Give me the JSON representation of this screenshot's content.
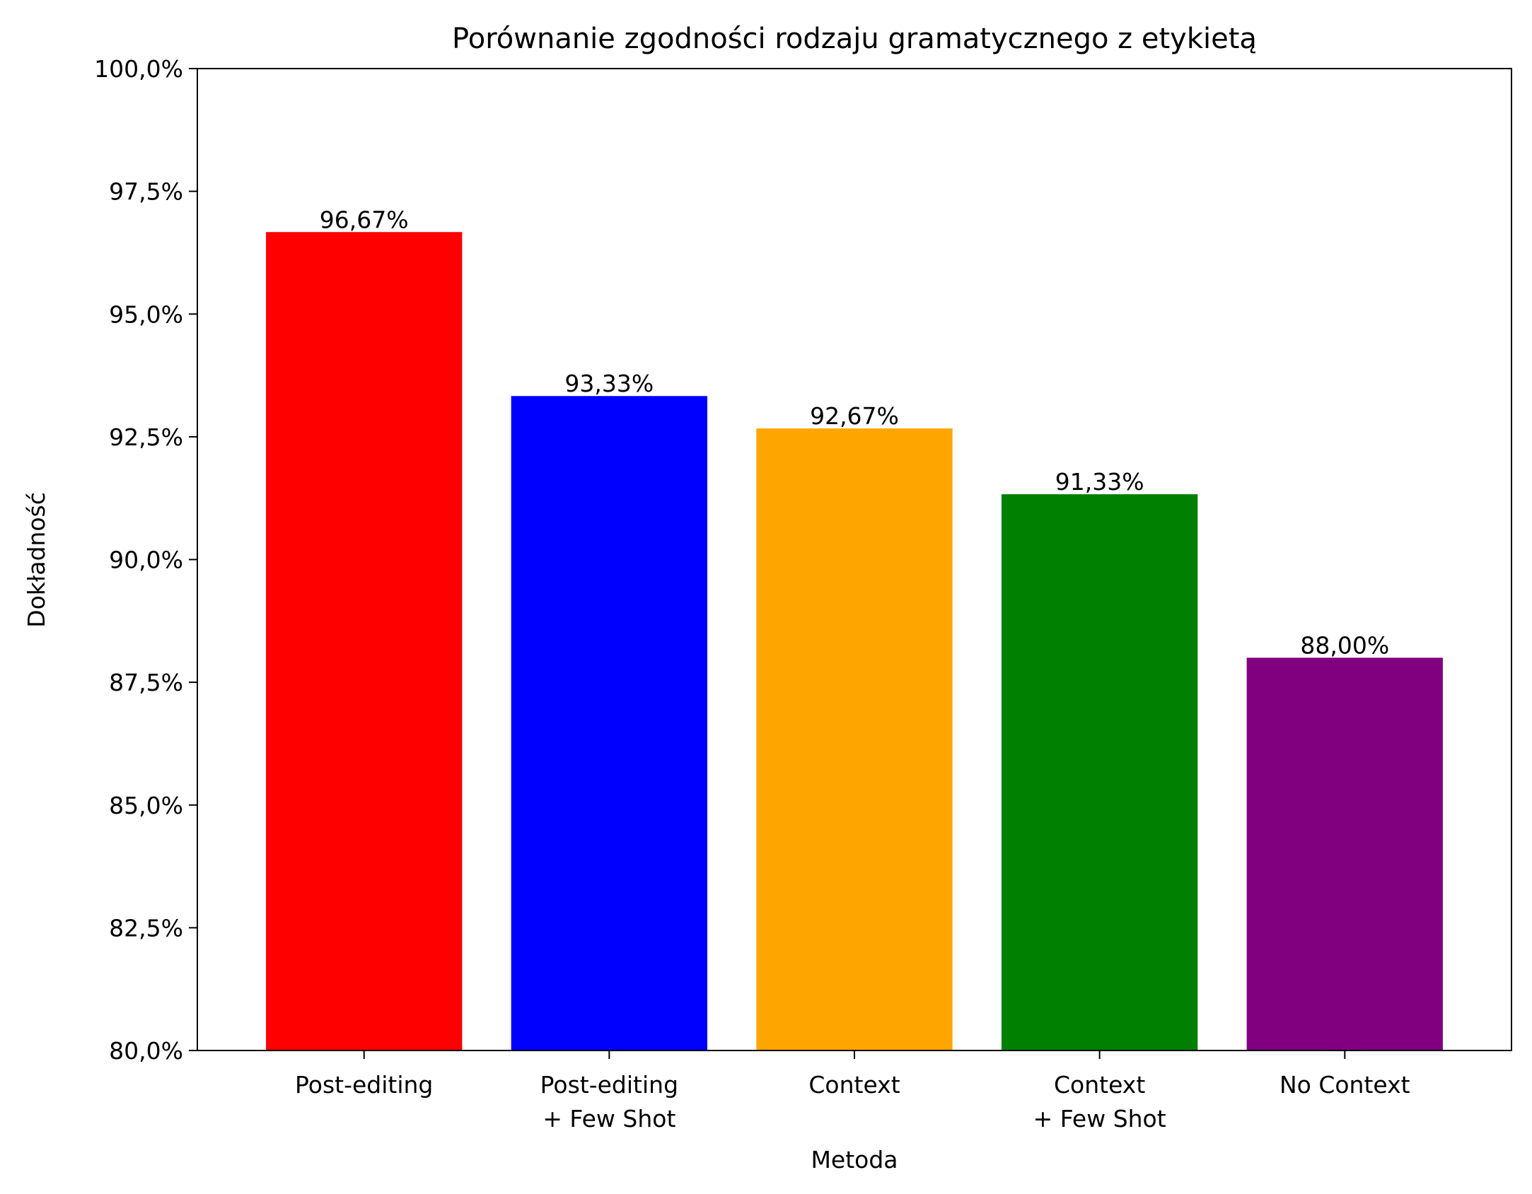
{
  "chart_data": {
    "type": "bar",
    "title": "Porównanie zgodności rodzaju gramatycznego z etykietą",
    "xlabel": "Metoda",
    "ylabel": "Dokładność",
    "ylim": [
      80.0,
      100.0
    ],
    "yticks": [
      80.0,
      82.5,
      85.0,
      87.5,
      90.0,
      92.5,
      95.0,
      97.5,
      100.0
    ],
    "ytick_labels": [
      "80,0%",
      "82,5%",
      "85,0%",
      "87,5%",
      "90,0%",
      "92,5%",
      "95,0%",
      "97,5%",
      "100,0%"
    ],
    "categories": [
      [
        "Post-editing"
      ],
      [
        "Post-editing",
        "+ Few Shot"
      ],
      [
        "Context"
      ],
      [
        "Context",
        "+ Few Shot"
      ],
      [
        "No Context"
      ]
    ],
    "values": [
      96.67,
      93.33,
      92.67,
      91.33,
      88.0
    ],
    "value_labels": [
      "96,67%",
      "93,33%",
      "92,67%",
      "91,33%",
      "88,00%"
    ],
    "colors": [
      "#ff0000",
      "#0000ff",
      "#ffa500",
      "#008000",
      "#800080"
    ],
    "grid": false,
    "legend": "none"
  }
}
